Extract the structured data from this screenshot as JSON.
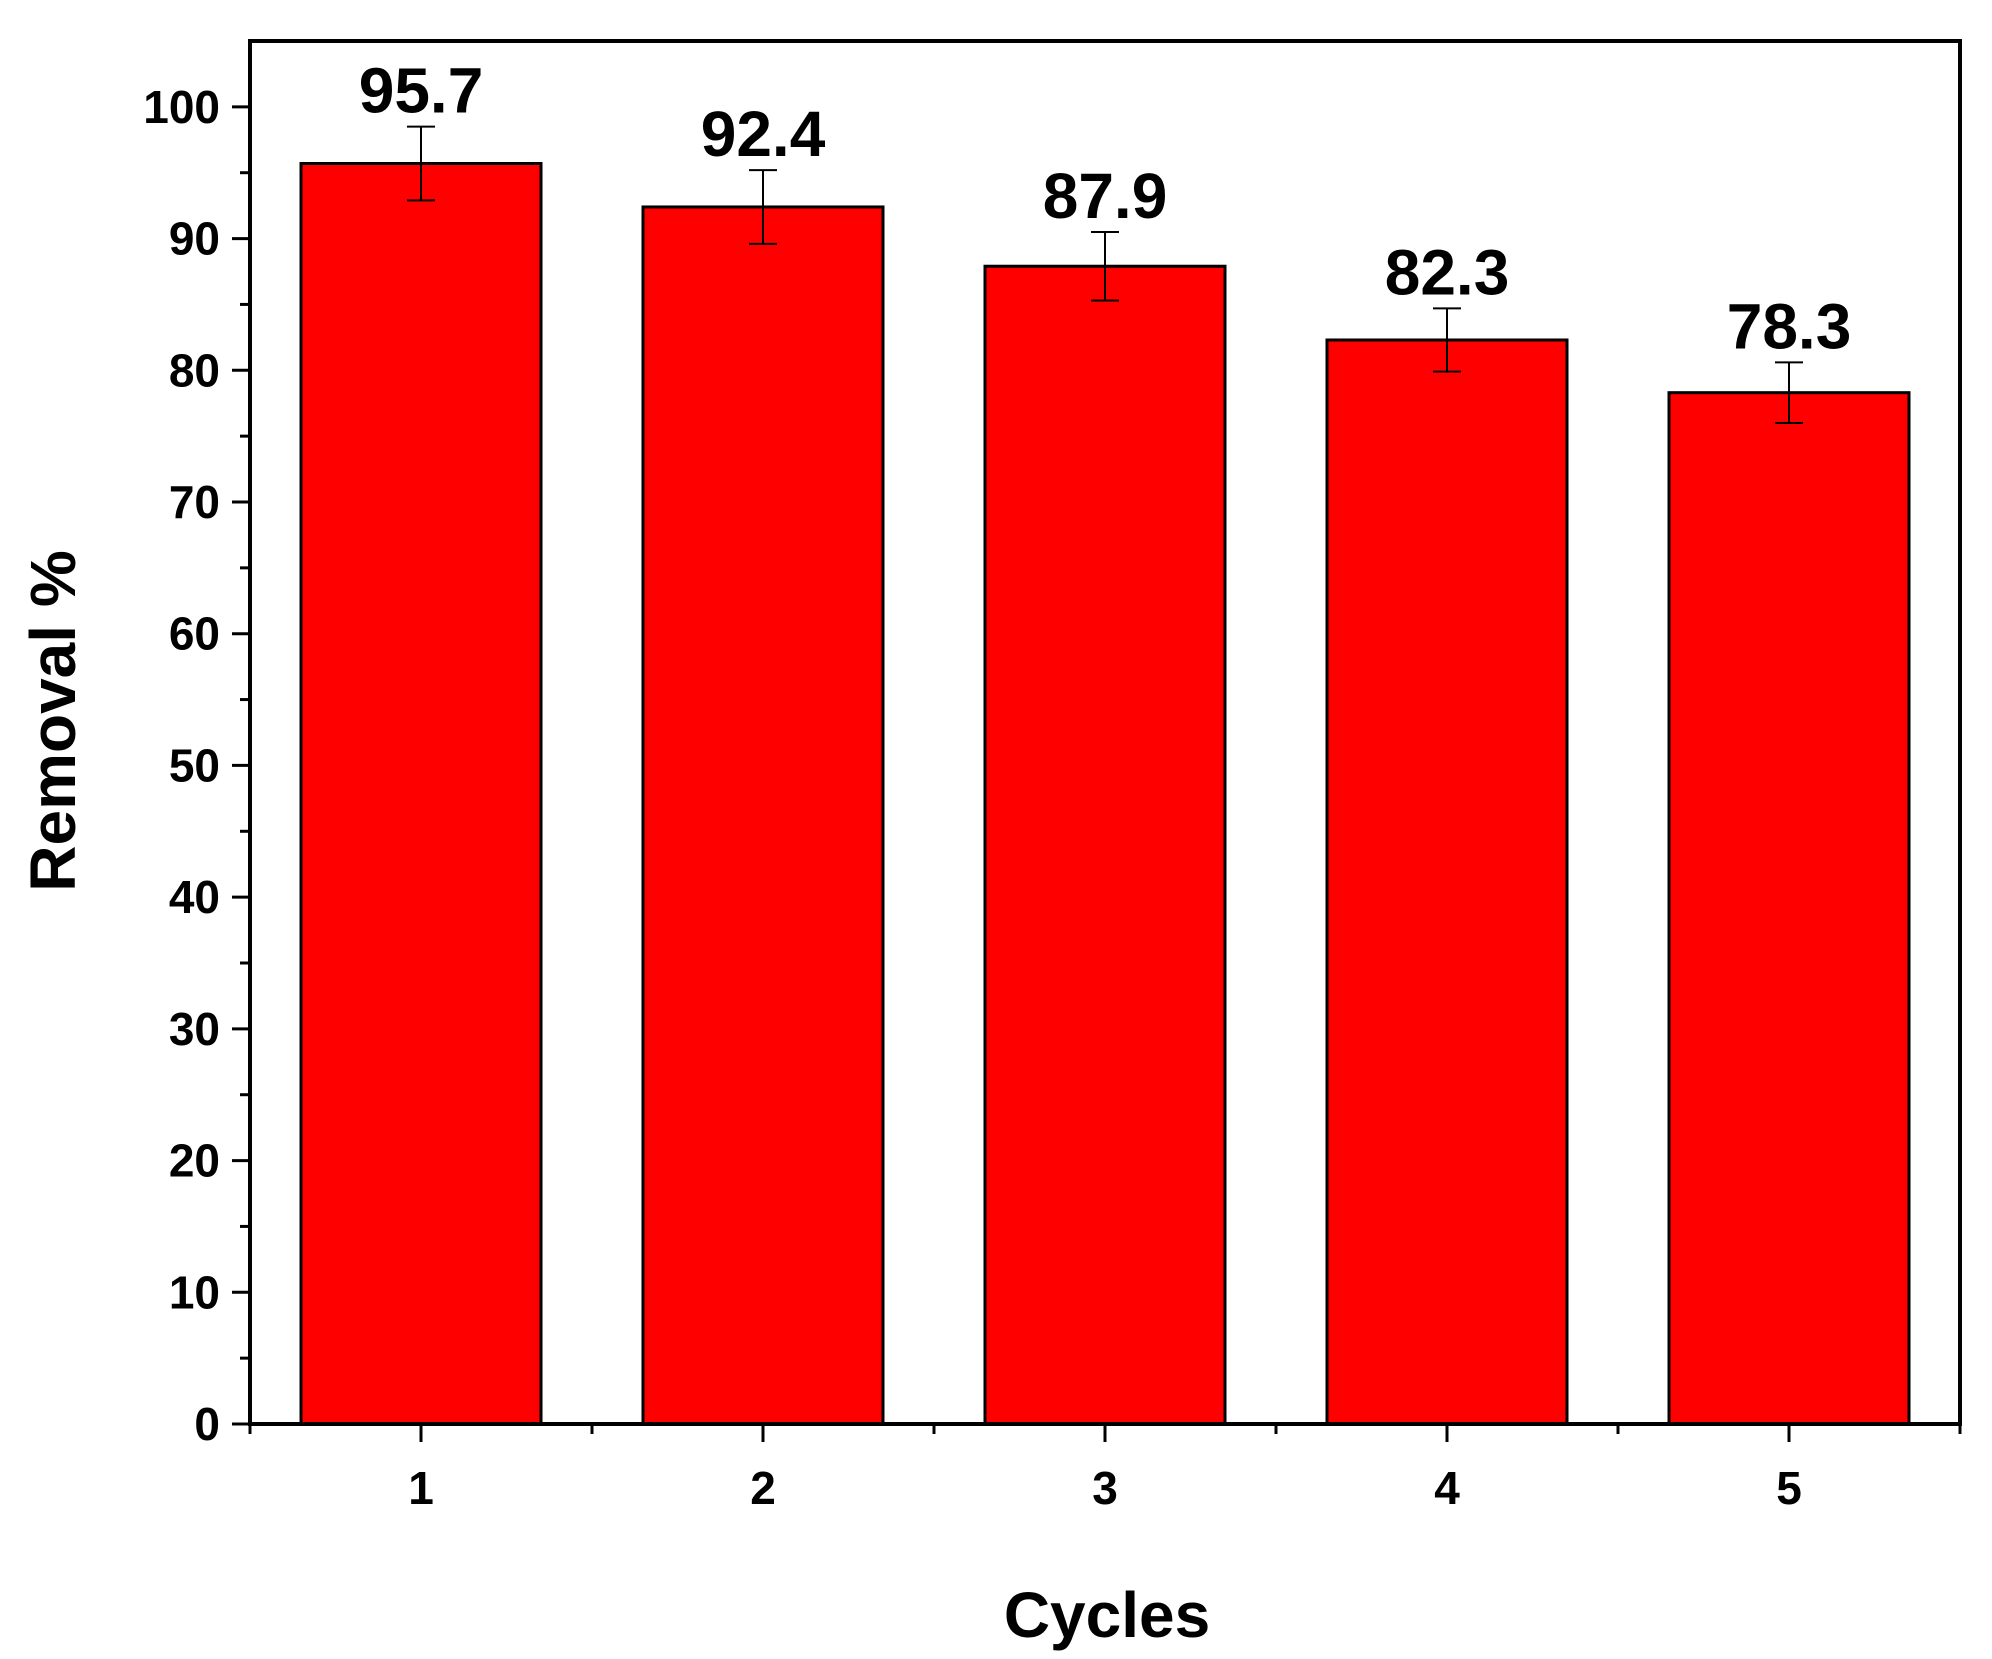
{
  "chart_data": {
    "type": "bar",
    "title": "",
    "xlabel": "Cycles",
    "ylabel": "Removal %",
    "categories": [
      "1",
      "2",
      "3",
      "4",
      "5"
    ],
    "values": [
      95.7,
      92.4,
      87.9,
      82.3,
      78.3
    ],
    "value_labels": [
      "95.7",
      "92.4",
      "87.9",
      "82.3",
      "78.3"
    ],
    "error_plus_minus": [
      2.8,
      2.8,
      2.6,
      2.4,
      2.3
    ],
    "ylim": [
      0,
      105
    ],
    "yticks": [
      0,
      10,
      20,
      30,
      40,
      50,
      60,
      70,
      80,
      90,
      100
    ],
    "ytick_labels": [
      "0",
      "10",
      "20",
      "30",
      "40",
      "50",
      "60",
      "70",
      "80",
      "90",
      "100"
    ],
    "grid": false,
    "legend": "none",
    "bar_color": "#ff0000",
    "edge_color": "#000000"
  }
}
